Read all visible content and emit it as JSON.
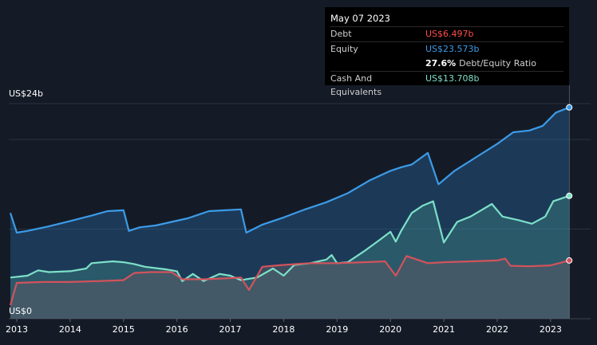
{
  "chart_data": {
    "type": "area",
    "y_unit_labels": [
      "US$24b",
      "US$0"
    ],
    "ylim": [
      0,
      24
    ],
    "xlim": [
      2012.85,
      2023.75
    ],
    "x_ticks": [
      "2013",
      "2014",
      "2015",
      "2016",
      "2017",
      "2018",
      "2019",
      "2020",
      "2021",
      "2022",
      "2023"
    ],
    "grid": true,
    "series": [
      {
        "name": "Equity",
        "color": "#3c9be8",
        "points": [
          [
            2012.88,
            11.8
          ],
          [
            2013.0,
            9.6
          ],
          [
            2013.2,
            9.8
          ],
          [
            2013.6,
            10.3
          ],
          [
            2014.0,
            10.9
          ],
          [
            2014.4,
            11.5
          ],
          [
            2014.7,
            12.0
          ],
          [
            2015.0,
            12.1
          ],
          [
            2015.1,
            9.8
          ],
          [
            2015.3,
            10.2
          ],
          [
            2015.6,
            10.4
          ],
          [
            2015.9,
            10.8
          ],
          [
            2016.2,
            11.2
          ],
          [
            2016.6,
            12.0
          ],
          [
            2016.9,
            12.1
          ],
          [
            2017.2,
            12.2
          ],
          [
            2017.3,
            9.6
          ],
          [
            2017.6,
            10.5
          ],
          [
            2018.0,
            11.3
          ],
          [
            2018.4,
            12.2
          ],
          [
            2018.8,
            13.0
          ],
          [
            2019.2,
            14.0
          ],
          [
            2019.6,
            15.4
          ],
          [
            2020.0,
            16.5
          ],
          [
            2020.2,
            16.9
          ],
          [
            2020.4,
            17.2
          ],
          [
            2020.7,
            18.5
          ],
          [
            2020.9,
            15.0
          ],
          [
            2021.2,
            16.5
          ],
          [
            2021.6,
            18.0
          ],
          [
            2022.0,
            19.5
          ],
          [
            2022.3,
            20.8
          ],
          [
            2022.6,
            21.0
          ],
          [
            2022.85,
            21.5
          ],
          [
            2023.1,
            23.0
          ],
          [
            2023.35,
            23.573
          ]
        ]
      },
      {
        "name": "Cash And Equivalents",
        "color": "#7de0c8",
        "points": [
          [
            2012.88,
            4.6
          ],
          [
            2013.2,
            4.8
          ],
          [
            2013.4,
            5.4
          ],
          [
            2013.6,
            5.2
          ],
          [
            2014.0,
            5.3
          ],
          [
            2014.3,
            5.6
          ],
          [
            2014.4,
            6.2
          ],
          [
            2014.8,
            6.4
          ],
          [
            2015.0,
            6.3
          ],
          [
            2015.2,
            6.1
          ],
          [
            2015.4,
            5.8
          ],
          [
            2015.8,
            5.5
          ],
          [
            2016.0,
            5.3
          ],
          [
            2016.1,
            4.2
          ],
          [
            2016.3,
            5.0
          ],
          [
            2016.5,
            4.2
          ],
          [
            2016.8,
            5.0
          ],
          [
            2017.0,
            4.8
          ],
          [
            2017.2,
            4.3
          ],
          [
            2017.5,
            4.6
          ],
          [
            2017.8,
            5.6
          ],
          [
            2018.0,
            4.8
          ],
          [
            2018.2,
            6.0
          ],
          [
            2018.5,
            6.2
          ],
          [
            2018.8,
            6.6
          ],
          [
            2018.9,
            7.1
          ],
          [
            2019.0,
            6.2
          ],
          [
            2019.2,
            6.3
          ],
          [
            2019.5,
            7.5
          ],
          [
            2019.8,
            8.8
          ],
          [
            2020.0,
            9.7
          ],
          [
            2020.1,
            8.6
          ],
          [
            2020.2,
            9.8
          ],
          [
            2020.4,
            11.8
          ],
          [
            2020.6,
            12.6
          ],
          [
            2020.8,
            13.1
          ],
          [
            2021.0,
            8.5
          ],
          [
            2021.25,
            10.8
          ],
          [
            2021.5,
            11.4
          ],
          [
            2021.9,
            12.8
          ],
          [
            2022.1,
            11.4
          ],
          [
            2022.4,
            11.0
          ],
          [
            2022.65,
            10.6
          ],
          [
            2022.9,
            11.4
          ],
          [
            2023.05,
            13.1
          ],
          [
            2023.35,
            13.708
          ]
        ]
      },
      {
        "name": "Debt",
        "color": "#d2535c",
        "points": [
          [
            2012.88,
            1.5
          ],
          [
            2013.0,
            4.0
          ],
          [
            2013.5,
            4.1
          ],
          [
            2014.0,
            4.1
          ],
          [
            2014.5,
            4.2
          ],
          [
            2015.0,
            4.3
          ],
          [
            2015.2,
            5.1
          ],
          [
            2015.5,
            5.2
          ],
          [
            2015.9,
            5.2
          ],
          [
            2016.1,
            4.4
          ],
          [
            2016.5,
            4.4
          ],
          [
            2016.9,
            4.5
          ],
          [
            2017.2,
            4.6
          ],
          [
            2017.35,
            3.2
          ],
          [
            2017.6,
            5.8
          ],
          [
            2017.8,
            5.9
          ],
          [
            2018.0,
            6.0
          ],
          [
            2018.5,
            6.2
          ],
          [
            2019.0,
            6.2
          ],
          [
            2019.5,
            6.3
          ],
          [
            2019.9,
            6.4
          ],
          [
            2020.1,
            4.8
          ],
          [
            2020.3,
            7.0
          ],
          [
            2020.5,
            6.6
          ],
          [
            2020.7,
            6.2
          ],
          [
            2021.0,
            6.3
          ],
          [
            2021.5,
            6.4
          ],
          [
            2022.0,
            6.5
          ],
          [
            2022.15,
            6.7
          ],
          [
            2022.25,
            5.9
          ],
          [
            2022.6,
            5.85
          ],
          [
            2023.0,
            5.95
          ],
          [
            2023.35,
            6.497
          ]
        ]
      }
    ]
  },
  "tooltip": {
    "date": "May 07 2023",
    "debt_label": "Debt",
    "debt_value": "US$6.497b",
    "equity_label": "Equity",
    "equity_value": "US$23.573b",
    "ratio_value": "27.6%",
    "ratio_label": "Debt/Equity Ratio",
    "cash_label": "Cash And Equivalents",
    "cash_value": "US$13.708b",
    "colors": {
      "debt": "#ff4d4d",
      "equity": "#3c9be8",
      "cash": "#7de0c8"
    }
  }
}
